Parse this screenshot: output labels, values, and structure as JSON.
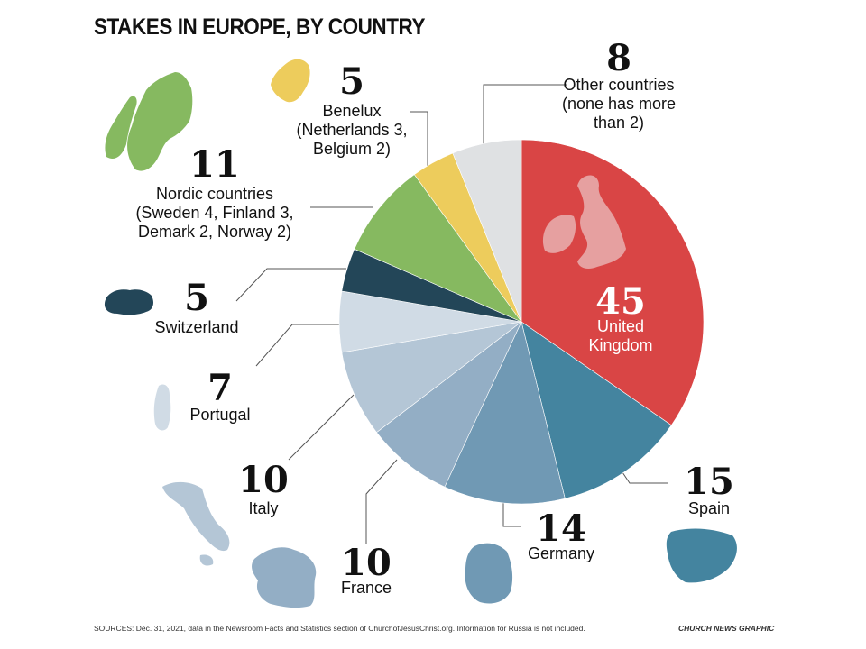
{
  "title": "STAKES IN EUROPE, BY COUNTRY",
  "footer": {
    "source": "SOURCES: Dec. 31, 2021, data in the Newsroom Facts and Statistics section of ChurchofJesusChrist.org. Information for Russia is not included.",
    "credit": "CHURCH NEWS GRAPHIC"
  },
  "chart_data": {
    "type": "pie",
    "start": "12 o'clock, clockwise",
    "slices": [
      {
        "key": "uk",
        "value": 45,
        "value_label": "45",
        "label_lines": [
          "United",
          "Kingdom"
        ],
        "color": "#d94545"
      },
      {
        "key": "spain",
        "value": 15,
        "value_label": "15",
        "label_lines": [
          "Spain"
        ],
        "color": "#44849f"
      },
      {
        "key": "germany",
        "value": 14,
        "value_label": "14",
        "label_lines": [
          "Germany"
        ],
        "color": "#7099b4"
      },
      {
        "key": "france",
        "value": 10,
        "value_label": "10",
        "label_lines": [
          "France"
        ],
        "color": "#93aec5"
      },
      {
        "key": "italy",
        "value": 10,
        "value_label": "10",
        "label_lines": [
          "Italy"
        ],
        "color": "#b4c6d6"
      },
      {
        "key": "portugal",
        "value": 7,
        "value_label": "7",
        "label_lines": [
          "Portugal"
        ],
        "color": "#d0dbe5"
      },
      {
        "key": "switzerland",
        "value": 5,
        "value_label": "5",
        "label_lines": [
          "Switzerland"
        ],
        "color": "#234658"
      },
      {
        "key": "nordic",
        "value": 11,
        "value_label": "11",
        "label_lines": [
          "Nordic countries",
          "(Sweden 4, Finland 3,",
          "Demark 2, Norway 2)"
        ],
        "color": "#86b960"
      },
      {
        "key": "benelux",
        "value": 5,
        "value_label": "5",
        "label_lines": [
          "Benelux",
          "(Netherlands 3,",
          "Belgium 2)"
        ],
        "color": "#edcc5c"
      },
      {
        "key": "other",
        "value": 8,
        "value_label": "8",
        "label_lines": [
          "Other countries",
          "(none has more",
          "than 2)"
        ],
        "color": "#dfe1e3"
      }
    ]
  }
}
